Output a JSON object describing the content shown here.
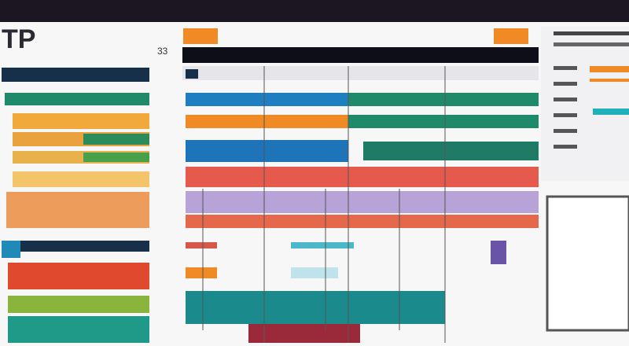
{
  "header": {
    "title": "TP"
  },
  "toolbar": {
    "label": "33"
  }
}
